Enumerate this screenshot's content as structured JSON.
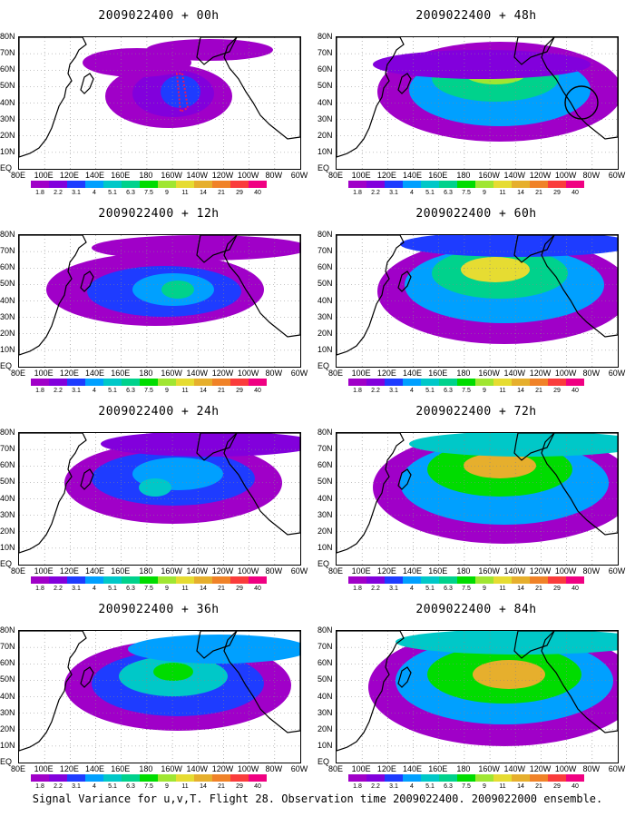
{
  "panels": [
    {
      "title": "2009022400 + 00h",
      "level": 0
    },
    {
      "title": "2009022400 + 48h",
      "level": 4
    },
    {
      "title": "2009022400 + 12h",
      "level": 1
    },
    {
      "title": "2009022400 + 60h",
      "level": 5
    },
    {
      "title": "2009022400 + 24h",
      "level": 2
    },
    {
      "title": "2009022400 + 72h",
      "level": 6
    },
    {
      "title": "2009022400 + 36h",
      "level": 3
    },
    {
      "title": "2009022400 + 84h",
      "level": 7
    }
  ],
  "lat_labels": [
    "80N",
    "70N",
    "60N",
    "50N",
    "40N",
    "30N",
    "20N",
    "10N",
    "EQ"
  ],
  "lon_labels": [
    "80E",
    "100E",
    "120E",
    "140E",
    "160E",
    "180",
    "160W",
    "140W",
    "120W",
    "100W",
    "80W",
    "60W"
  ],
  "colorbar": {
    "labels": [
      "1.8",
      "2.2",
      "3.1",
      "4",
      "5.1",
      "6.3",
      "7.5",
      "9",
      "11",
      "14",
      "21",
      "29",
      "40"
    ],
    "colors": [
      "#a000c8",
      "#8200dc",
      "#1e3cff",
      "#00a0ff",
      "#00c8c8",
      "#00d28c",
      "#00dc00",
      "#a0e632",
      "#e6dc32",
      "#e6af2d",
      "#f08228",
      "#fa3c3c",
      "#f00082"
    ]
  },
  "caption": "Signal Variance for u,v,T. Flight 28. Observation time 2009022400. 2009022000 ensemble."
}
